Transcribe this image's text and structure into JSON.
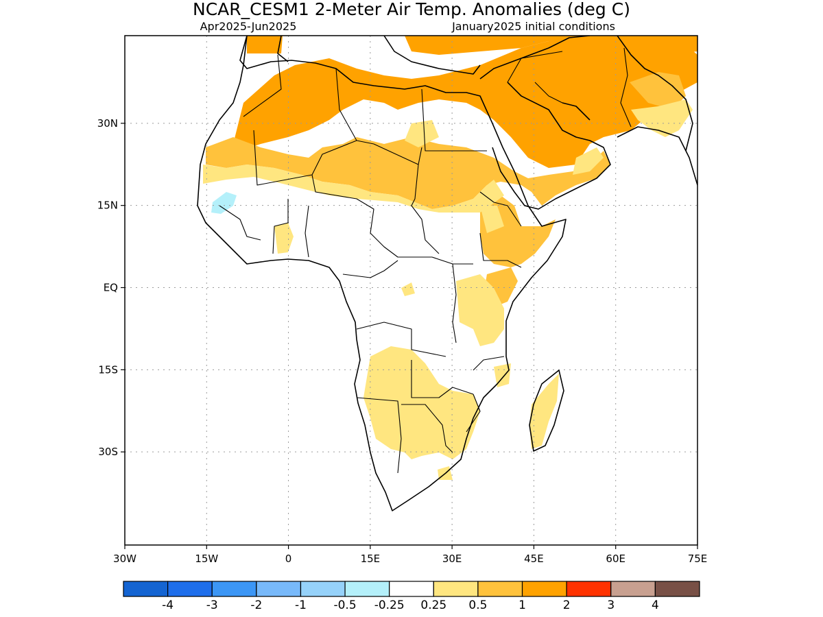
{
  "title": "NCAR_CESM1 2-Meter Air Temp. Anomalies (deg C)",
  "subtitle_left": "Apr2025-Jun2025",
  "subtitle_right": "January2025 initial conditions",
  "map": {
    "lon_range": [
      -30,
      75
    ],
    "lat_range": [
      -47,
      46
    ],
    "lon_ticks": [
      {
        "value": -30,
        "label": "30W"
      },
      {
        "value": -15,
        "label": "15W"
      },
      {
        "value": 0,
        "label": "0"
      },
      {
        "value": 15,
        "label": "15E"
      },
      {
        "value": 30,
        "label": "30E"
      },
      {
        "value": 45,
        "label": "45E"
      },
      {
        "value": 60,
        "label": "60E"
      },
      {
        "value": 75,
        "label": "75E"
      }
    ],
    "lat_ticks": [
      {
        "value": 30,
        "label": "30N"
      },
      {
        "value": 15,
        "label": "15N"
      },
      {
        "value": 0,
        "label": "EQ"
      },
      {
        "value": -15,
        "label": "15S"
      },
      {
        "value": -30,
        "label": "30S"
      }
    ],
    "grid": "dotted",
    "anomaly_colors": {
      "0.25-0.5": "#ffe680",
      "0.5-1": "#ffc23c",
      "1-2": "#ffa200",
      "-0.5--0.25": "#b4f0fa"
    }
  },
  "colorbar": {
    "colors": [
      "#1464d2",
      "#1e6eeb",
      "#3c96f5",
      "#78b9fa",
      "#96d2fa",
      "#b4f0fa",
      "#ffffff",
      "#ffe680",
      "#ffc23c",
      "#ffa200",
      "#ff3200",
      "#c8a090",
      "#785046"
    ],
    "labels": [
      "-4",
      "-3",
      "-2",
      "-1",
      "-0.5",
      "-0.25",
      "0.25",
      "0.5",
      "1",
      "2",
      "3",
      "4"
    ]
  }
}
